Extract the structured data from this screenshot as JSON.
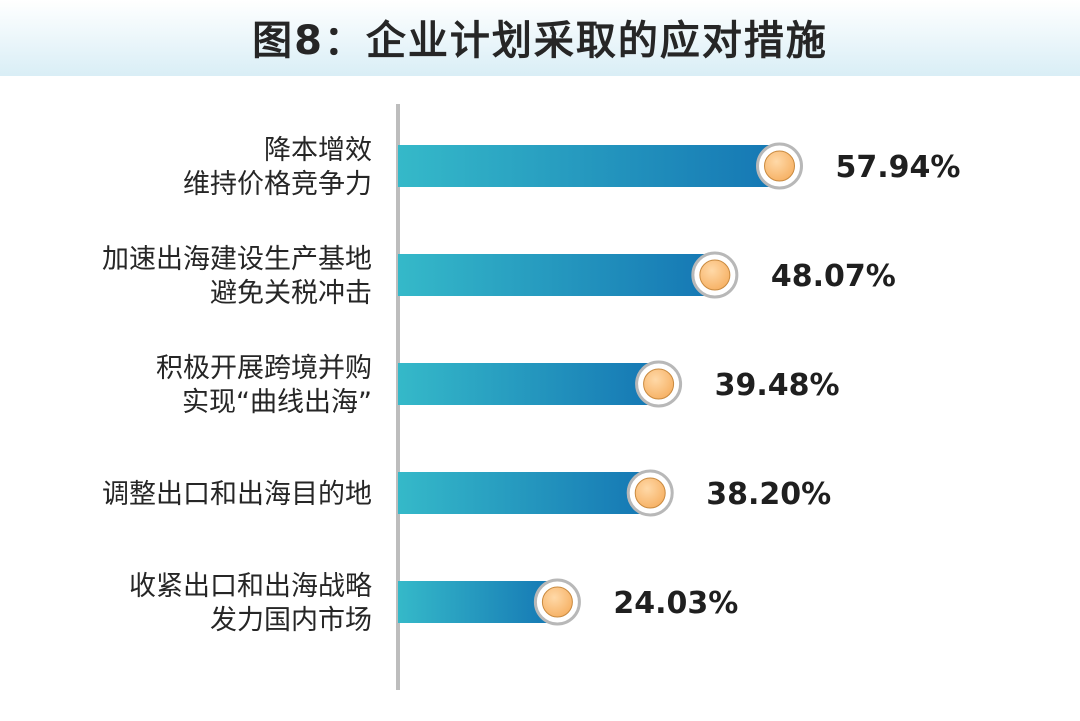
{
  "title": "图8：企业计划采取的应对措施",
  "colors": {
    "bar_start": "#35b9c9",
    "bar_end": "#1577b4",
    "marker_fill": "#f6b063",
    "marker_ring": "#b8b8b8",
    "axis": "#bdbdbd"
  },
  "chart_data": {
    "type": "bar",
    "orientation": "horizontal",
    "categories": [
      [
        "降本增效",
        "维持价格竞争力"
      ],
      [
        "加速出海建设生产基地",
        "避免关税冲击"
      ],
      [
        "积极开展跨境并购",
        "实现“曲线出海”"
      ],
      [
        "调整出口和出海目的地"
      ],
      [
        "收紧出口和出海战略",
        "发力国内市场"
      ]
    ],
    "values": [
      57.94,
      48.07,
      39.48,
      38.2,
      24.03
    ],
    "value_labels": [
      "57.94%",
      "48.07%",
      "39.48%",
      "38.20%",
      "24.03%"
    ],
    "title": "图8：企业计划采取的应对措施",
    "xlabel": "",
    "ylabel": "",
    "xlim": [
      0,
      100
    ],
    "grid": false,
    "legend": "none"
  }
}
